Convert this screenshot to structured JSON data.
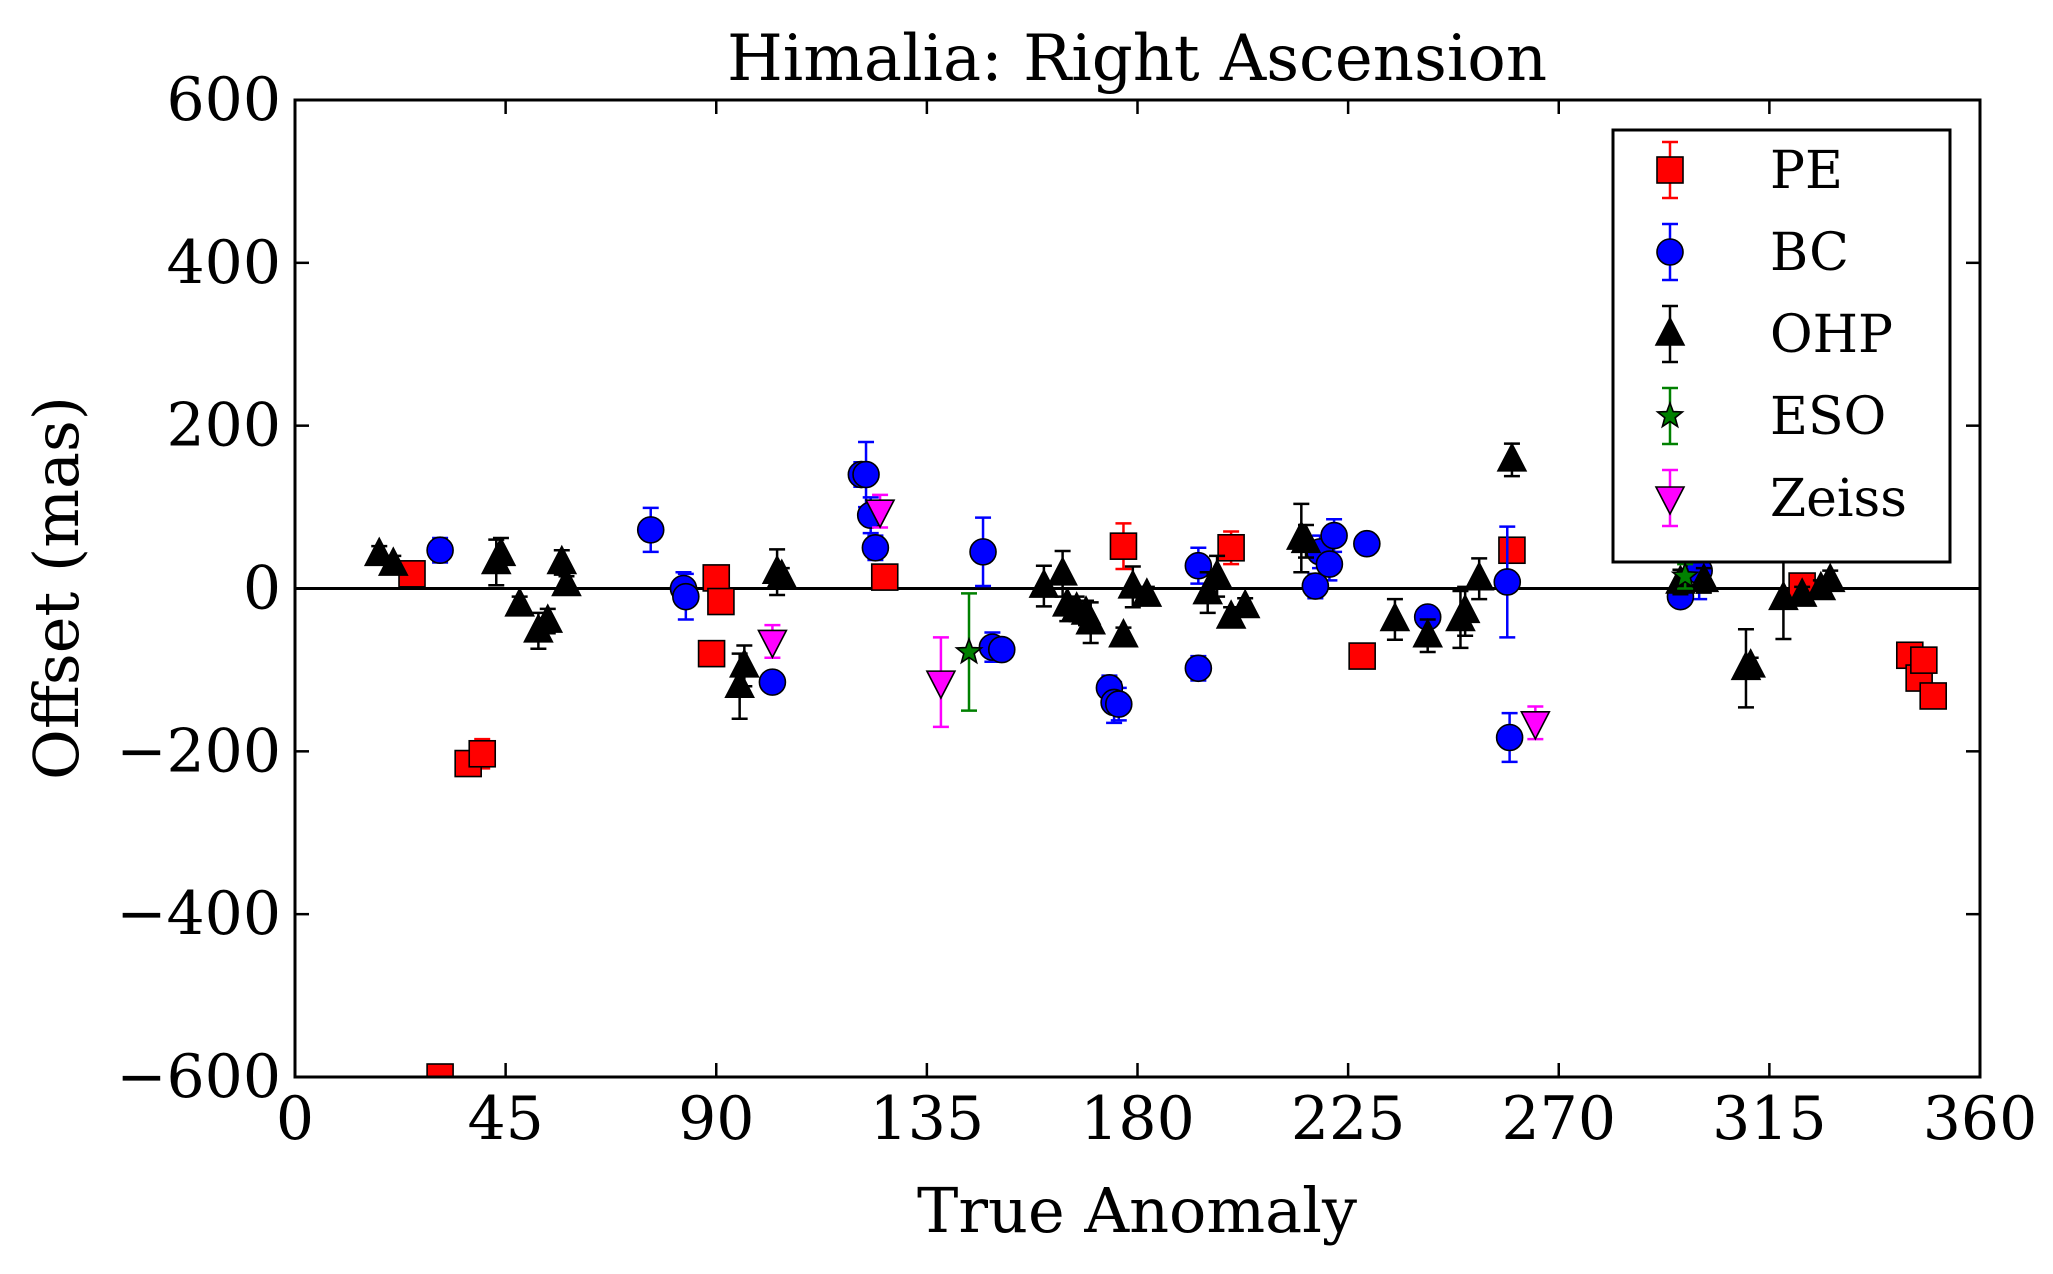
{
  "chart_data": {
    "type": "scatter",
    "title": "Himalia: Right Ascension",
    "xlabel": "True Anomaly",
    "ylabel": "Offset (mas)",
    "xlim": [
      0,
      360
    ],
    "ylim": [
      -600,
      600
    ],
    "xticks": [
      0,
      45,
      90,
      135,
      180,
      225,
      270,
      315,
      360
    ],
    "yticks": [
      -600,
      -400,
      -200,
      0,
      200,
      400,
      600
    ],
    "xtick_labels": [
      "0",
      "45",
      "90",
      "135",
      "180",
      "225",
      "270",
      "315",
      "360"
    ],
    "ytick_labels": [
      "−600",
      "−400",
      "−200",
      "0",
      "200",
      "400",
      "600"
    ],
    "zero_line": true,
    "grid": false,
    "legend_position": "top-right",
    "series": [
      {
        "name": "PE",
        "marker": "square",
        "color": "#ff0000",
        "points": [
          {
            "x": 25,
            "y": 18,
            "err": 15
          },
          {
            "x": 31,
            "y": -600,
            "err": 0
          },
          {
            "x": 37,
            "y": -215,
            "err": 10
          },
          {
            "x": 40,
            "y": -203,
            "err": 18
          },
          {
            "x": 89,
            "y": -80,
            "err": 8
          },
          {
            "x": 90,
            "y": 13,
            "err": 10
          },
          {
            "x": 91,
            "y": -16,
            "err": 10
          },
          {
            "x": 126,
            "y": 14,
            "err": 10
          },
          {
            "x": 177,
            "y": 52,
            "err": 28
          },
          {
            "x": 200,
            "y": 50,
            "err": 20
          },
          {
            "x": 228,
            "y": -83,
            "err": 10
          },
          {
            "x": 260,
            "y": 47,
            "err": 12
          },
          {
            "x": 322,
            "y": 3,
            "err": 10
          },
          {
            "x": 345,
            "y": -82,
            "err": 10
          },
          {
            "x": 347,
            "y": -110,
            "err": 10
          },
          {
            "x": 348,
            "y": -88,
            "err": 10
          },
          {
            "x": 350,
            "y": -132,
            "err": 10
          }
        ]
      },
      {
        "name": "BC",
        "marker": "circle",
        "color": "#0000ff",
        "points": [
          {
            "x": 31,
            "y": 47,
            "err": 15
          },
          {
            "x": 76,
            "y": 72,
            "err": 27
          },
          {
            "x": 83,
            "y": 0,
            "err": 20
          },
          {
            "x": 83.5,
            "y": -10,
            "err": 28
          },
          {
            "x": 102,
            "y": -115,
            "err": 10
          },
          {
            "x": 121,
            "y": 140,
            "err": 15
          },
          {
            "x": 122,
            "y": 140,
            "err": 40
          },
          {
            "x": 123,
            "y": 90,
            "err": 22
          },
          {
            "x": 124,
            "y": 50,
            "err": 15
          },
          {
            "x": 147,
            "y": 45,
            "err": 42
          },
          {
            "x": 149,
            "y": -72,
            "err": 18
          },
          {
            "x": 151,
            "y": -75,
            "err": 8
          },
          {
            "x": 174,
            "y": -122,
            "err": 15
          },
          {
            "x": 175,
            "y": -140,
            "err": 25
          },
          {
            "x": 176,
            "y": -142,
            "err": 20
          },
          {
            "x": 193,
            "y": 28,
            "err": 22
          },
          {
            "x": 193,
            "y": -98,
            "err": 15
          },
          {
            "x": 218,
            "y": 3,
            "err": 15
          },
          {
            "x": 219,
            "y": 45,
            "err": 20
          },
          {
            "x": 221,
            "y": 30,
            "err": 20
          },
          {
            "x": 222,
            "y": 65,
            "err": 20
          },
          {
            "x": 229,
            "y": 55,
            "err": 10
          },
          {
            "x": 242,
            "y": -35,
            "err": 12
          },
          {
            "x": 259,
            "y": 8,
            "err": 68
          },
          {
            "x": 259.5,
            "y": -183,
            "err": 30
          },
          {
            "x": 296,
            "y": -10,
            "err": 10
          },
          {
            "x": 300,
            "y": 22,
            "err": 35
          }
        ]
      },
      {
        "name": "OHP",
        "marker": "triangle-up",
        "color": "#000000",
        "points": [
          {
            "x": 18,
            "y": 42,
            "err": 10
          },
          {
            "x": 21,
            "y": 30,
            "err": 10
          },
          {
            "x": 43,
            "y": 32,
            "err": 28
          },
          {
            "x": 44,
            "y": 42,
            "err": 20
          },
          {
            "x": 48,
            "y": -20,
            "err": 10
          },
          {
            "x": 52,
            "y": -52,
            "err": 22
          },
          {
            "x": 54,
            "y": -40,
            "err": 15
          },
          {
            "x": 57,
            "y": 32,
            "err": 15
          },
          {
            "x": 58,
            "y": 5,
            "err": 10
          },
          {
            "x": 95,
            "y": -120,
            "err": 40
          },
          {
            "x": 96,
            "y": -95,
            "err": 25
          },
          {
            "x": 103,
            "y": 20,
            "err": 28
          },
          {
            "x": 104,
            "y": 15,
            "err": 10
          },
          {
            "x": 160,
            "y": 3,
            "err": 25
          },
          {
            "x": 164,
            "y": 18,
            "err": 28
          },
          {
            "x": 165,
            "y": -20,
            "err": 20
          },
          {
            "x": 167,
            "y": -25,
            "err": 15
          },
          {
            "x": 169,
            "y": -30,
            "err": 15
          },
          {
            "x": 170,
            "y": -42,
            "err": 25
          },
          {
            "x": 177,
            "y": -58,
            "err": 10
          },
          {
            "x": 179,
            "y": 2,
            "err": 25
          },
          {
            "x": 182,
            "y": -8,
            "err": 10
          },
          {
            "x": 195,
            "y": -5,
            "err": 25
          },
          {
            "x": 197,
            "y": 15,
            "err": 25
          },
          {
            "x": 200,
            "y": -35,
            "err": 12
          },
          {
            "x": 203,
            "y": -22,
            "err": 10
          },
          {
            "x": 215,
            "y": 62,
            "err": 42
          },
          {
            "x": 216,
            "y": 58,
            "err": 20
          },
          {
            "x": 235,
            "y": -38,
            "err": 25
          },
          {
            "x": 242,
            "y": -58,
            "err": 20
          },
          {
            "x": 249,
            "y": -38,
            "err": 35
          },
          {
            "x": 250,
            "y": -28,
            "err": 30
          },
          {
            "x": 253,
            "y": 12,
            "err": 25
          },
          {
            "x": 260,
            "y": 158,
            "err": 20
          },
          {
            "x": 296,
            "y": 8,
            "err": 15
          },
          {
            "x": 301,
            "y": 10,
            "err": 15
          },
          {
            "x": 310,
            "y": -98,
            "err": 48
          },
          {
            "x": 311,
            "y": -95,
            "err": 10
          },
          {
            "x": 318,
            "y": -12,
            "err": 50
          },
          {
            "x": 322,
            "y": -8,
            "err": 10
          },
          {
            "x": 326,
            "y": 0,
            "err": 10
          },
          {
            "x": 328,
            "y": 10,
            "err": 12
          }
        ]
      },
      {
        "name": "ESO",
        "marker": "star",
        "color": "#008000",
        "points": [
          {
            "x": 144,
            "y": -78,
            "err": 72
          },
          {
            "x": 297,
            "y": 15,
            "err": 15
          }
        ]
      },
      {
        "name": "Zeiss",
        "marker": "triangle-down",
        "color": "#ff00ff",
        "points": [
          {
            "x": 102,
            "y": -65,
            "err": 20
          },
          {
            "x": 125,
            "y": 95,
            "err": 20
          },
          {
            "x": 138,
            "y": -115,
            "err": 55
          },
          {
            "x": 265,
            "y": -165,
            "err": 20
          }
        ]
      }
    ]
  }
}
